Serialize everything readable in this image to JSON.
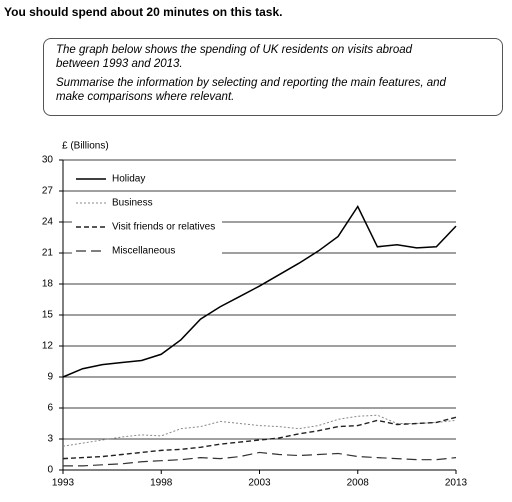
{
  "instruction": "You should spend about 20 minutes on this task.",
  "task": {
    "paragraphs": [
      "The graph below shows the spending of UK residents on visits abroad between 1993 and 2013.",
      "Summarise the information by selecting and reporting the main features, and make comparisons where relevant."
    ]
  },
  "chart_data": {
    "type": "line",
    "ylabel": "£ (Billions)",
    "x": [
      1993,
      1994,
      1995,
      1996,
      1997,
      1998,
      1999,
      2000,
      2001,
      2002,
      2003,
      2004,
      2005,
      2006,
      2007,
      2008,
      2009,
      2010,
      2011,
      2012,
      2013
    ],
    "xlim": [
      1993,
      2013
    ],
    "xticks": [
      1993,
      1998,
      2003,
      2008,
      2013
    ],
    "ylim": [
      0,
      30
    ],
    "yticks": [
      0,
      3,
      6,
      9,
      12,
      15,
      18,
      21,
      24,
      27,
      30
    ],
    "grid": true,
    "legend": "upper left",
    "series": [
      {
        "name": "Holiday",
        "color": "#000000",
        "values": [
          9.0,
          9.8,
          10.2,
          10.4,
          10.6,
          11.2,
          12.6,
          14.6,
          15.8,
          16.8,
          17.8,
          18.9,
          20.0,
          21.2,
          22.6,
          25.5,
          21.6,
          21.8,
          21.5,
          21.6,
          23.6
        ]
      },
      {
        "name": "Business",
        "color": "#888888",
        "values": [
          2.3,
          2.6,
          2.9,
          3.2,
          3.4,
          3.3,
          4.0,
          4.2,
          4.7,
          4.5,
          4.3,
          4.2,
          4.0,
          4.3,
          4.9,
          5.2,
          5.3,
          4.5,
          4.5,
          4.6,
          4.8
        ]
      },
      {
        "name": "Visit friends or relatives",
        "color": "#222222",
        "values": [
          1.1,
          1.2,
          1.3,
          1.5,
          1.7,
          1.9,
          2.0,
          2.2,
          2.5,
          2.7,
          2.9,
          3.1,
          3.5,
          3.8,
          4.2,
          4.3,
          4.8,
          4.4,
          4.5,
          4.6,
          5.1
        ]
      },
      {
        "name": "Miscellaneous",
        "color": "#333333",
        "values": [
          0.4,
          0.4,
          0.5,
          0.6,
          0.8,
          0.9,
          1.0,
          1.2,
          1.1,
          1.3,
          1.7,
          1.5,
          1.4,
          1.5,
          1.6,
          1.3,
          1.2,
          1.1,
          1.0,
          1.0,
          1.2
        ]
      }
    ]
  }
}
